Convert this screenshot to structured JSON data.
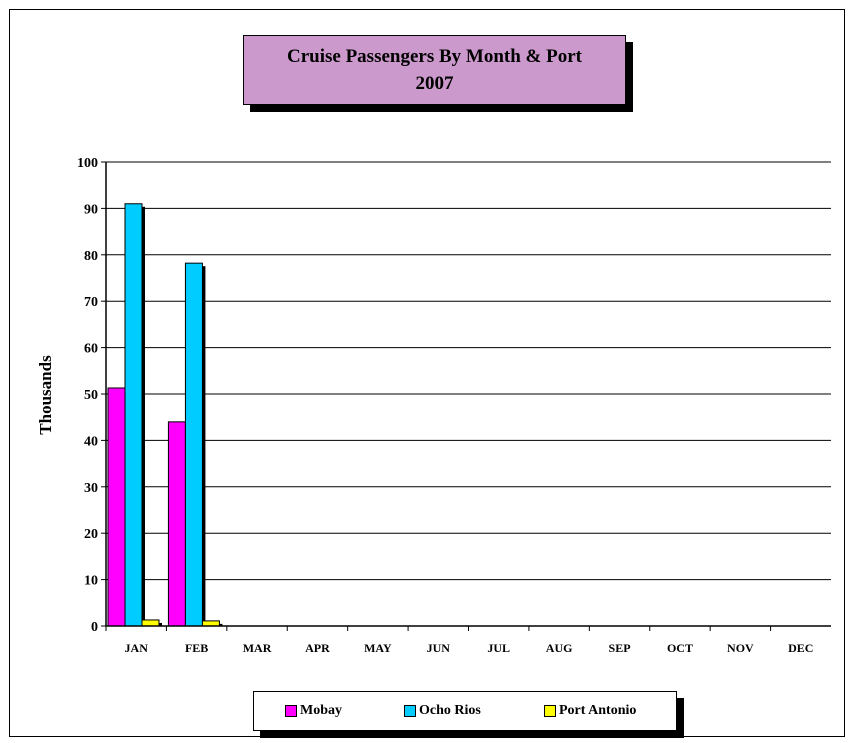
{
  "chart_data": {
    "type": "bar",
    "title": "Cruise Passengers By Month & Port",
    "subtitle": "2007",
    "ylabel": "Thousands",
    "xlabel": "",
    "ylim": [
      0,
      100
    ],
    "yticks": [
      0,
      10,
      20,
      30,
      40,
      50,
      60,
      70,
      80,
      90,
      100
    ],
    "grid": true,
    "legend": "bottom",
    "categories": [
      "JAN",
      "FEB",
      "MAR",
      "APR",
      "MAY",
      "JUN",
      "JUL",
      "AUG",
      "SEP",
      "OCT",
      "NOV",
      "DEC"
    ],
    "series": [
      {
        "name": "Mobay",
        "color": "#ff00ff",
        "values": [
          51.3,
          44,
          null,
          null,
          null,
          null,
          null,
          null,
          null,
          null,
          null,
          null
        ]
      },
      {
        "name": "Ocho Rios",
        "color": "#00ccff",
        "values": [
          91,
          78.2,
          null,
          null,
          null,
          null,
          null,
          null,
          null,
          null,
          null,
          null
        ]
      },
      {
        "name": "Port Antonio",
        "color": "#ffff00",
        "values": [
          1.3,
          1.1,
          null,
          null,
          null,
          null,
          null,
          null,
          null,
          null,
          null,
          null
        ]
      }
    ]
  }
}
